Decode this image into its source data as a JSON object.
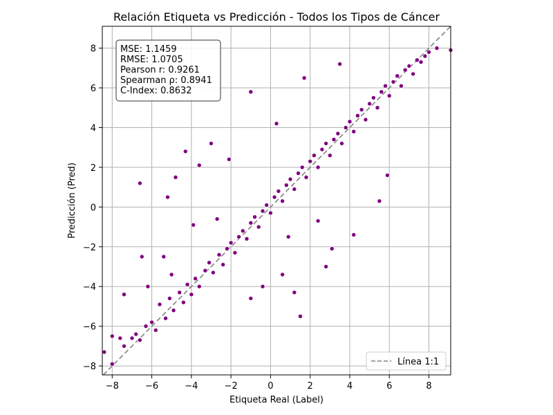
{
  "chart_data": {
    "type": "scatter",
    "title": "Relación Etiqueta vs Predicción - Todos los Tipos de Cáncer",
    "xlabel": "Etiqueta Real (Label)",
    "ylabel": "Predicción (Pred)",
    "xlim": [
      -8.5,
      9.1
    ],
    "ylim": [
      -8.45,
      9.1
    ],
    "xticks": [
      -8,
      -6,
      -4,
      -2,
      0,
      2,
      4,
      6,
      8
    ],
    "yticks": [
      -8,
      -6,
      -4,
      -2,
      0,
      2,
      4,
      6,
      8
    ],
    "xtick_labels": [
      "−8",
      "−6",
      "−4",
      "−2",
      "0",
      "2",
      "4",
      "6",
      "8"
    ],
    "ytick_labels": [
      "−8",
      "−6",
      "−4",
      "−2",
      "0",
      "2",
      "4",
      "6",
      "8"
    ],
    "grid": true,
    "point_color": "#800080",
    "point_edge_color": "#ffffff",
    "reference_line": {
      "name": "Línea 1:1",
      "slope": 1,
      "intercept": 0,
      "color": "#808080",
      "style": "dashed"
    },
    "legend": {
      "position": "lower-right",
      "entries": [
        "Línea 1:1"
      ]
    },
    "stats": {
      "lines": [
        "MSE: 1.1459",
        "RMSE: 1.0705",
        "Pearson r: 0.9261",
        "Spearman ρ: 0.8941",
        "C-Index: 0.8632"
      ]
    },
    "points": [
      [
        -8.4,
        -7.3
      ],
      [
        -8.0,
        -7.9
      ],
      [
        -7.6,
        -6.6
      ],
      [
        -7.4,
        -7.0
      ],
      [
        -7.0,
        -6.6
      ],
      [
        -6.8,
        -6.4
      ],
      [
        -6.6,
        -6.7
      ],
      [
        -6.3,
        -6.0
      ],
      [
        -6.0,
        -5.8
      ],
      [
        -5.8,
        -6.2
      ],
      [
        -5.6,
        -4.9
      ],
      [
        -5.3,
        -5.6
      ],
      [
        -5.1,
        -4.6
      ],
      [
        -4.9,
        -5.2
      ],
      [
        -4.6,
        -4.3
      ],
      [
        -4.4,
        -4.8
      ],
      [
        -4.2,
        -3.9
      ],
      [
        -4.0,
        -4.4
      ],
      [
        -3.8,
        -3.6
      ],
      [
        -3.6,
        -4.0
      ],
      [
        -3.3,
        -3.2
      ],
      [
        -3.1,
        -2.8
      ],
      [
        -2.9,
        -3.3
      ],
      [
        -2.6,
        -2.4
      ],
      [
        -2.4,
        -2.9
      ],
      [
        -2.2,
        -2.1
      ],
      [
        -2.0,
        -1.8
      ],
      [
        -1.8,
        -2.3
      ],
      [
        -1.6,
        -1.5
      ],
      [
        -1.4,
        -1.2
      ],
      [
        -1.2,
        -1.6
      ],
      [
        -1.0,
        -0.8
      ],
      [
        -0.8,
        -0.5
      ],
      [
        -0.6,
        -1.0
      ],
      [
        -0.4,
        -0.2
      ],
      [
        -0.2,
        0.1
      ],
      [
        0.0,
        -0.3
      ],
      [
        0.2,
        0.5
      ],
      [
        0.4,
        0.8
      ],
      [
        0.6,
        0.3
      ],
      [
        0.8,
        1.1
      ],
      [
        1.0,
        1.4
      ],
      [
        1.2,
        0.9
      ],
      [
        1.4,
        1.7
      ],
      [
        1.6,
        2.0
      ],
      [
        1.8,
        1.5
      ],
      [
        2.0,
        2.3
      ],
      [
        2.2,
        2.6
      ],
      [
        2.4,
        2.0
      ],
      [
        2.6,
        2.9
      ],
      [
        2.8,
        3.2
      ],
      [
        3.0,
        2.6
      ],
      [
        3.2,
        3.4
      ],
      [
        3.4,
        3.7
      ],
      [
        3.6,
        3.2
      ],
      [
        3.8,
        4.0
      ],
      [
        4.0,
        4.3
      ],
      [
        4.2,
        3.8
      ],
      [
        4.4,
        4.6
      ],
      [
        4.6,
        4.9
      ],
      [
        4.8,
        4.4
      ],
      [
        5.0,
        5.2
      ],
      [
        5.2,
        5.5
      ],
      [
        5.4,
        5.0
      ],
      [
        5.6,
        5.8
      ],
      [
        5.8,
        6.1
      ],
      [
        6.0,
        5.6
      ],
      [
        6.2,
        6.3
      ],
      [
        6.4,
        6.6
      ],
      [
        6.6,
        6.1
      ],
      [
        6.8,
        6.9
      ],
      [
        7.0,
        7.1
      ],
      [
        7.2,
        6.7
      ],
      [
        7.4,
        7.4
      ],
      [
        7.6,
        7.3
      ],
      [
        7.8,
        7.6
      ],
      [
        8.0,
        7.8
      ],
      [
        8.4,
        8.0
      ],
      [
        9.1,
        7.9
      ],
      [
        -6.6,
        1.2
      ],
      [
        -4.3,
        2.8
      ],
      [
        -3.6,
        2.1
      ],
      [
        -3.0,
        3.2
      ],
      [
        -4.8,
        1.5
      ],
      [
        -5.2,
        0.5
      ],
      [
        -1.0,
        5.8
      ],
      [
        0.3,
        4.2
      ],
      [
        1.7,
        6.5
      ],
      [
        3.5,
        7.2
      ],
      [
        -2.1,
        2.4
      ],
      [
        2.8,
        -3.0
      ],
      [
        3.1,
        -2.1
      ],
      [
        1.2,
        -4.3
      ],
      [
        0.6,
        -3.4
      ],
      [
        -0.4,
        -4.0
      ],
      [
        1.5,
        -5.5
      ],
      [
        4.2,
        -1.4
      ],
      [
        5.5,
        0.3
      ],
      [
        5.9,
        1.6
      ],
      [
        -1.0,
        -4.6
      ],
      [
        -6.5,
        -2.5
      ],
      [
        -7.4,
        -4.4
      ],
      [
        -8.0,
        -6.5
      ],
      [
        -6.2,
        -4.0
      ],
      [
        -5.4,
        -2.5
      ],
      [
        -5.0,
        -3.4
      ],
      [
        -3.9,
        -0.9
      ],
      [
        -2.7,
        -0.6
      ],
      [
        0.9,
        -1.5
      ],
      [
        2.4,
        -0.7
      ]
    ]
  }
}
